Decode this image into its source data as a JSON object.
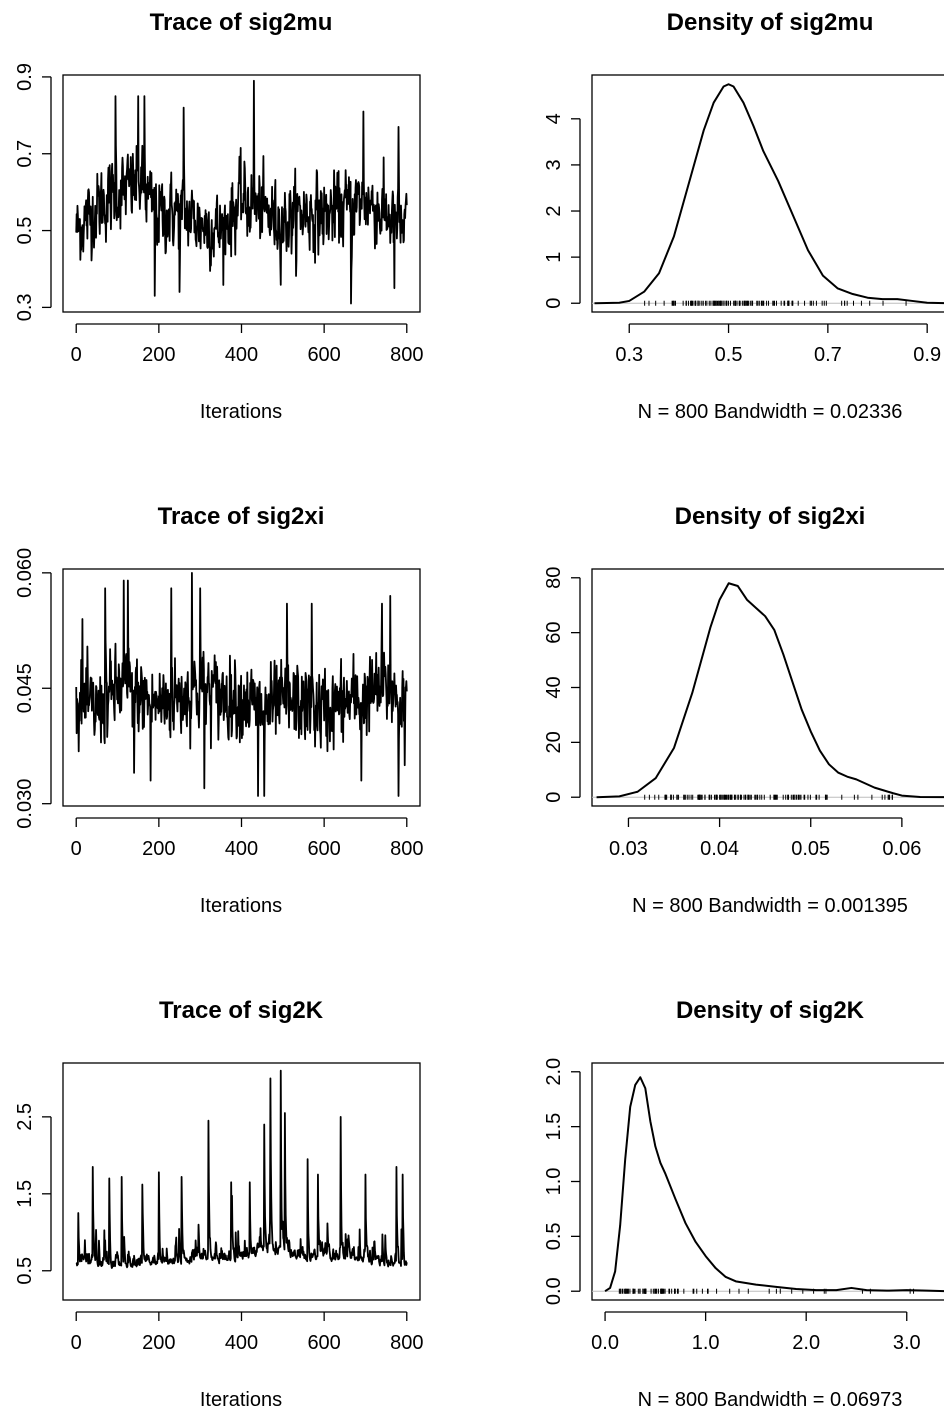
{
  "chart_data": [
    {
      "type": "line",
      "title": "Trace of sig2mu",
      "xlabel": "Iterations",
      "ylabel": "",
      "xlim": [
        0,
        800
      ],
      "ylim": [
        0.3,
        0.9
      ],
      "xticks": [
        "0",
        "200",
        "400",
        "600",
        "800"
      ],
      "yticks": [
        "0.3",
        "0.5",
        "0.7",
        "0.9"
      ],
      "series": [
        {
          "x": [
            0,
            50,
            100,
            150,
            200,
            250,
            300,
            350,
            400,
            450,
            500,
            550,
            600,
            650,
            700,
            750,
            800
          ],
          "y": [
            0.5,
            0.56,
            0.6,
            0.62,
            0.54,
            0.55,
            0.52,
            0.5,
            0.58,
            0.55,
            0.52,
            0.55,
            0.54,
            0.56,
            0.58,
            0.54,
            0.5
          ]
        }
      ],
      "spikes_high": [
        [
          95,
          0.85
        ],
        [
          150,
          0.85
        ],
        [
          165,
          0.85
        ],
        [
          260,
          0.82
        ],
        [
          430,
          0.89
        ],
        [
          695,
          0.81
        ],
        [
          780,
          0.77
        ]
      ],
      "spikes_low": [
        [
          95,
          0.35
        ],
        [
          190,
          0.33
        ],
        [
          250,
          0.34
        ],
        [
          430,
          0.34
        ],
        [
          665,
          0.31
        ],
        [
          770,
          0.35
        ]
      ],
      "center": 0.53,
      "spread": 0.065
    },
    {
      "type": "line",
      "title": "Density of sig2mu",
      "xlabel": "N = 800   Bandwidth = 0.02336",
      "ylabel": "",
      "xlim": [
        0.225,
        0.95
      ],
      "ylim": [
        0,
        4.75
      ],
      "xticks": [
        "0.3",
        "0.5",
        "0.7",
        "0.9"
      ],
      "yticks": [
        "0",
        "1",
        "2",
        "3",
        "4"
      ],
      "series": [
        {
          "x": [
            0.23,
            0.28,
            0.3,
            0.33,
            0.36,
            0.39,
            0.42,
            0.45,
            0.47,
            0.49,
            0.5,
            0.51,
            0.53,
            0.55,
            0.57,
            0.6,
            0.63,
            0.66,
            0.69,
            0.72,
            0.75,
            0.78,
            0.81,
            0.84,
            0.87,
            0.9,
            0.95
          ],
          "y": [
            0,
            0.01,
            0.05,
            0.25,
            0.65,
            1.45,
            2.6,
            3.75,
            4.35,
            4.7,
            4.75,
            4.7,
            4.35,
            3.85,
            3.3,
            2.65,
            1.9,
            1.15,
            0.6,
            0.32,
            0.2,
            0.12,
            0.09,
            0.09,
            0.05,
            0.01,
            0
          ]
        }
      ],
      "rug": [
        0.33,
        0.88
      ]
    },
    {
      "type": "line",
      "title": "Trace of sig2xi",
      "xlabel": "Iterations",
      "ylabel": "",
      "xlim": [
        0,
        800
      ],
      "ylim": [
        0.03,
        0.06
      ],
      "xticks": [
        "0",
        "200",
        "400",
        "600",
        "800"
      ],
      "yticks": [
        "0.030",
        "0.045",
        "0.060"
      ],
      "series": [
        {
          "x": [
            0,
            50,
            100,
            150,
            200,
            250,
            300,
            350,
            400,
            450,
            500,
            550,
            600,
            650,
            700,
            750,
            800
          ],
          "y": [
            0.043,
            0.042,
            0.045,
            0.044,
            0.043,
            0.044,
            0.045,
            0.044,
            0.044,
            0.042,
            0.043,
            0.043,
            0.042,
            0.043,
            0.044,
            0.045,
            0.043
          ]
        }
      ],
      "spikes_high": [
        [
          15,
          0.054
        ],
        [
          70,
          0.058
        ],
        [
          115,
          0.059
        ],
        [
          125,
          0.059
        ],
        [
          230,
          0.058
        ],
        [
          280,
          0.06
        ],
        [
          300,
          0.058
        ],
        [
          510,
          0.056
        ],
        [
          570,
          0.056
        ],
        [
          740,
          0.056
        ],
        [
          760,
          0.057
        ]
      ],
      "spikes_low": [
        [
          15,
          0.035
        ],
        [
          140,
          0.034
        ],
        [
          180,
          0.033
        ],
        [
          310,
          0.032
        ],
        [
          440,
          0.031
        ],
        [
          455,
          0.031
        ],
        [
          690,
          0.033
        ],
        [
          780,
          0.031
        ],
        [
          795,
          0.035
        ]
      ],
      "center": 0.0432,
      "spread": 0.0035
    },
    {
      "type": "line",
      "title": "Density of sig2xi",
      "xlabel": "N = 800   Bandwidth = 0.001395",
      "ylabel": "",
      "xlim": [
        0.026,
        0.0655
      ],
      "ylim": [
        0,
        80
      ],
      "xticks": [
        "0.03",
        "0.04",
        "0.05",
        "0.06"
      ],
      "yticks": [
        "0",
        "20",
        "40",
        "60",
        "80"
      ],
      "series": [
        {
          "x": [
            0.0265,
            0.029,
            0.031,
            0.033,
            0.035,
            0.037,
            0.039,
            0.04,
            0.041,
            0.042,
            0.043,
            0.044,
            0.045,
            0.046,
            0.047,
            0.048,
            0.049,
            0.05,
            0.051,
            0.052,
            0.053,
            0.054,
            0.055,
            0.056,
            0.057,
            0.058,
            0.059,
            0.06,
            0.062,
            0.0655
          ],
          "y": [
            0,
            0.3,
            2,
            7,
            18,
            38,
            62,
            72,
            78,
            77,
            72,
            69,
            66,
            61,
            52,
            42,
            32,
            24,
            17,
            12,
            9,
            7.5,
            6.5,
            5,
            3.5,
            2.5,
            1.5,
            0.6,
            0.1,
            0
          ]
        }
      ],
      "rug": [
        0.031,
        0.061
      ]
    },
    {
      "type": "line",
      "title": "Trace of sig2K",
      "xlabel": "Iterations",
      "ylabel": "",
      "xlim": [
        0,
        800
      ],
      "ylim": [
        0.5,
        2.5
      ],
      "xticks": [
        "0",
        "200",
        "400",
        "600",
        "800"
      ],
      "yticks": [
        "0.5",
        "1.5",
        "2.5"
      ],
      "series": [
        {
          "x": [
            0,
            50,
            100,
            150,
            200,
            250,
            300,
            350,
            400,
            450,
            500,
            550,
            600,
            650,
            700,
            750,
            800
          ],
          "y": [
            0.55,
            0.52,
            0.5,
            0.52,
            0.55,
            0.56,
            0.62,
            0.58,
            0.6,
            0.7,
            0.68,
            0.6,
            0.62,
            0.6,
            0.58,
            0.55,
            0.5
          ]
        }
      ],
      "spikes_high": [
        [
          5,
          1.25
        ],
        [
          40,
          1.85
        ],
        [
          80,
          1.7
        ],
        [
          110,
          1.72
        ],
        [
          160,
          1.62
        ],
        [
          200,
          1.78
        ],
        [
          255,
          1.72
        ],
        [
          320,
          2.45
        ],
        [
          375,
          1.65
        ],
        [
          420,
          1.65
        ],
        [
          455,
          2.4
        ],
        [
          470,
          3.0
        ],
        [
          495,
          3.1
        ],
        [
          505,
          2.55
        ],
        [
          560,
          1.95
        ],
        [
          585,
          1.75
        ],
        [
          640,
          2.5
        ],
        [
          700,
          1.75
        ],
        [
          775,
          1.85
        ],
        [
          790,
          1.75
        ]
      ],
      "center": 0.52,
      "spread": 0.13
    },
    {
      "type": "line",
      "title": "Density of sig2K",
      "xlabel": "N = 800   Bandwidth = 0.06973",
      "ylabel": "",
      "xlim": [
        -0.13,
        3.45
      ],
      "ylim": [
        0,
        2.0
      ],
      "xticks": [
        "0.0",
        "1.0",
        "2.0",
        "3.0"
      ],
      "yticks": [
        "0.0",
        "0.5",
        "1.0",
        "1.5",
        "2.0"
      ],
      "series": [
        {
          "x": [
            0.0,
            0.05,
            0.1,
            0.15,
            0.2,
            0.25,
            0.3,
            0.35,
            0.4,
            0.45,
            0.5,
            0.55,
            0.6,
            0.7,
            0.8,
            0.9,
            1.0,
            1.1,
            1.2,
            1.3,
            1.5,
            1.7,
            1.9,
            2.1,
            2.3,
            2.45,
            2.6,
            2.8,
            3.0,
            3.2,
            3.4
          ],
          "y": [
            0,
            0.03,
            0.18,
            0.6,
            1.2,
            1.68,
            1.88,
            1.95,
            1.85,
            1.55,
            1.32,
            1.17,
            1.07,
            0.84,
            0.62,
            0.45,
            0.32,
            0.21,
            0.13,
            0.09,
            0.06,
            0.04,
            0.02,
            0.01,
            0.01,
            0.03,
            0.01,
            0.005,
            0.01,
            0.005,
            0
          ]
        }
      ],
      "rug": [
        0.12,
        3.1
      ]
    }
  ]
}
